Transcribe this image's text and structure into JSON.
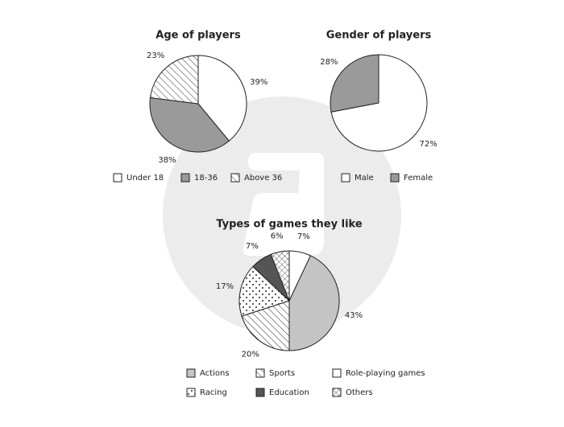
{
  "chart_data": [
    {
      "type": "pie",
      "title": "Age of players",
      "categories": [
        "Under 18",
        "18-36",
        "Above 36"
      ],
      "values": [
        39,
        38,
        23
      ],
      "value_labels": [
        "39%",
        "38%",
        "23%"
      ],
      "colors": [
        "#ffffff",
        "#9a9a9a",
        "#ffffff"
      ],
      "patterns": [
        null,
        null,
        "hatch"
      ]
    },
    {
      "type": "pie",
      "title": "Gender of players",
      "categories": [
        "Male",
        "Female"
      ],
      "values": [
        72,
        28
      ],
      "value_labels": [
        "72%",
        "28%"
      ],
      "colors": [
        "#ffffff",
        "#9a9a9a"
      ],
      "patterns": [
        null,
        null
      ]
    },
    {
      "type": "pie",
      "title": "Types of games they like",
      "categories": [
        "Role-playing games",
        "Actions",
        "Sports",
        "Racing",
        "Education",
        "Others"
      ],
      "values": [
        7,
        43,
        20,
        17,
        7,
        6
      ],
      "value_labels": [
        "7%",
        "43%",
        "20%",
        "17%",
        "7%",
        "6%"
      ],
      "colors": [
        "#ffffff",
        "#c4c4c4",
        "#ffffff",
        "#ffffff",
        "#555555",
        "#ffffff"
      ],
      "patterns": [
        null,
        null,
        "hatch",
        "dots",
        null,
        "cross"
      ]
    }
  ]
}
